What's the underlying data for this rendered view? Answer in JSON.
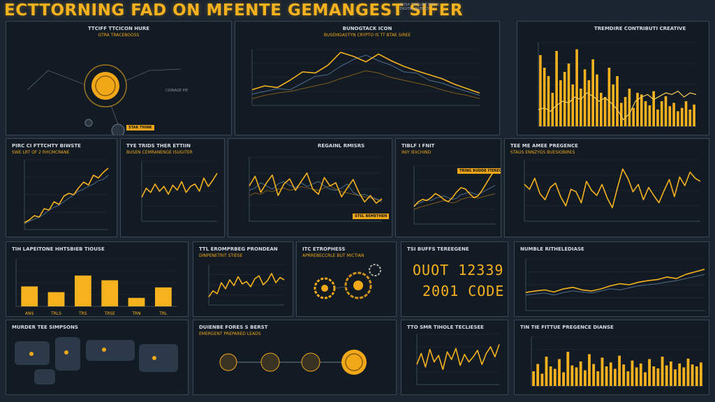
{
  "header": {
    "title": "ECTTORNING FAD ON MFENTE GEMANGEST SIFER",
    "subtitle": "RUSA TIMELINE BULLS DIGITAL AGENCY"
  },
  "colors": {
    "accent": "#f6b21e",
    "line_blue": "#4f6c8c",
    "grid": "#26323e",
    "panel": "#121b24"
  },
  "panels": {
    "p1": {
      "title": "TTCIFF TTCICON HURE",
      "sub": "GTRA TRACEBOOSS",
      "badge": "STAK THINK",
      "note": "COINAGE PIE"
    },
    "p2": {
      "title": "BUNOGTACK ICON",
      "sub": "BUSEMGASTYN CRYPTO IS TT BTAE SIREE"
    },
    "p3": {
      "title": "TREMDIRE CONTRIBUTI CREATIVE"
    },
    "p4": {
      "title": "PIRC CI FTTCHTY BIWSTE",
      "sub": "SWE LRT OF 2 RHCMCRANE"
    },
    "p5": {
      "title": "TYE TRIDS THER ETTIIN",
      "sub": "BUSEN CEMRANENGE ISUGITER"
    },
    "p6": {
      "title": "REGAINL RMISRS",
      "badge": "STSL BEMETHEN"
    },
    "p7": {
      "title": "TIBLF I FNIT",
      "sub": "INIY IEIICHIND",
      "badge": "TRING BUDDE ITEREC TOLDES"
    },
    "p8": {
      "title": "TEE ME AMEE PREGENCE",
      "sub": "STAUS ENNZYGS BUESIOBIRES"
    },
    "p9": {
      "title": "TIH LAPEITONE HHTSBIEB TIOUSE"
    },
    "p10": {
      "title": "TTL EROMPRBEG PRONDEAN",
      "sub": "DINPENETRIT STIESE"
    },
    "p11": {
      "title": "ITC ETROPHESS",
      "sub": "APRREBECCRLE BUT MICTIAN"
    },
    "p12": {
      "title": "TSI BUFFS TEREEGENE",
      "num1": "OUOT 12339",
      "num2": "2001 CODE"
    },
    "p13": {
      "title": "NUMBLE RITHELEDIASE"
    },
    "p14": {
      "title": "MURDER TEE SIMPSONS"
    },
    "p15": {
      "title": "DUIENBE FORES S BERST",
      "sub": "EMERGENT PREPARED LEADS"
    },
    "p16": {
      "title": "TTO SMR TIHOLE TECLIESEE"
    },
    "p17": {
      "title": "TIN TIE FITTUE PREGENCE DIANSE"
    }
  },
  "chart_data": [
    {
      "type": "line",
      "panel": "p2",
      "series": [
        {
          "values": [
            28,
            35,
            32,
            45,
            60,
            58,
            72,
            95,
            88,
            78,
            92,
            80,
            70,
            62,
            55,
            48,
            38,
            30,
            22
          ]
        },
        {
          "values": [
            20,
            25,
            30,
            28,
            40,
            52,
            55,
            70,
            82,
            90,
            80,
            72,
            60,
            58,
            45,
            40,
            32,
            25,
            18
          ]
        },
        {
          "values": [
            12,
            18,
            22,
            25,
            30,
            35,
            40,
            48,
            55,
            62,
            58,
            50,
            45,
            40,
            35,
            28,
            22,
            18,
            12
          ]
        }
      ],
      "ylim": [
        0,
        100
      ]
    },
    {
      "type": "bar",
      "panel": "p3",
      "values": [
        85,
        70,
        60,
        40,
        90,
        55,
        65,
        75,
        50,
        92,
        45,
        68,
        55,
        80,
        62,
        40,
        35,
        70,
        50,
        60,
        28,
        35,
        45,
        22,
        40,
        38,
        30,
        25,
        42,
        20,
        30,
        36,
        24,
        28,
        18,
        22,
        30,
        20,
        26
      ],
      "ylim": [
        0,
        100
      ],
      "overlay": [
        20,
        22,
        18,
        25,
        30,
        28,
        35,
        32,
        40,
        36,
        30,
        34,
        28,
        20,
        8,
        15,
        30,
        35,
        38,
        32,
        36,
        40,
        38,
        42,
        35,
        40,
        38
      ]
    },
    {
      "type": "line",
      "panel": "p4",
      "series": [
        {
          "values": [
            10,
            14,
            20,
            18,
            30,
            28,
            40,
            36,
            48,
            52,
            50,
            60,
            68,
            64,
            78,
            74,
            82,
            88
          ]
        },
        {
          "values": [
            8,
            12,
            15,
            18,
            22,
            28,
            32,
            35,
            40,
            45,
            50,
            55,
            58,
            62,
            65,
            70,
            72,
            78
          ]
        }
      ],
      "ylim": [
        0,
        100
      ]
    },
    {
      "type": "line",
      "panel": "p5",
      "series": [
        {
          "values": [
            40,
            55,
            48,
            62,
            50,
            58,
            45,
            60,
            52,
            66,
            48,
            58,
            62,
            50,
            72,
            58,
            68,
            80
          ]
        }
      ],
      "ylim": [
        0,
        100
      ]
    },
    {
      "type": "line",
      "panel": "p6",
      "series": [
        {
          "values": [
            55,
            70,
            45,
            60,
            72,
            40,
            58,
            66,
            48,
            62,
            75,
            50,
            42,
            68,
            55,
            60,
            38,
            52,
            65,
            45,
            30,
            40,
            28,
            35
          ]
        },
        {
          "values": [
            48,
            52,
            60,
            55,
            50,
            58,
            62,
            56,
            52,
            60,
            54,
            58,
            62,
            55,
            50,
            48,
            52,
            58,
            45,
            40,
            42,
            38,
            35,
            32
          ]
        },
        {
          "values": [
            40,
            44,
            42,
            48,
            46,
            50,
            52,
            48,
            50,
            54,
            52,
            50,
            48,
            52,
            55,
            50,
            46,
            44,
            42,
            40,
            38,
            36,
            34,
            30
          ]
        }
      ],
      "ylim": [
        0,
        100
      ]
    },
    {
      "type": "line",
      "panel": "p7",
      "series": [
        {
          "values": [
            30,
            38,
            42,
            40,
            45,
            52,
            48,
            42,
            38,
            45,
            55,
            62,
            60,
            52,
            45,
            48,
            58,
            70,
            82,
            92
          ]
        },
        {
          "values": [
            32,
            35,
            38,
            42,
            40,
            44,
            46,
            48,
            45,
            42,
            44,
            50,
            52,
            55,
            52,
            50,
            54,
            58,
            62,
            66
          ]
        },
        {
          "values": [
            25,
            28,
            30,
            32,
            34,
            36,
            38,
            40,
            38,
            36,
            38,
            42,
            44,
            46,
            45,
            44,
            46,
            48,
            50,
            52
          ]
        }
      ],
      "ylim": [
        0,
        100
      ]
    },
    {
      "type": "line",
      "panel": "p8",
      "series": [
        {
          "values": [
            60,
            52,
            70,
            45,
            35,
            55,
            62,
            40,
            25,
            52,
            48,
            30,
            65,
            50,
            42,
            60,
            38,
            22,
            55,
            85,
            70,
            48,
            60,
            35,
            55,
            42,
            30,
            50,
            68,
            40,
            72,
            58,
            80,
            70,
            65
          ]
        }
      ],
      "ylim": [
        0,
        100
      ]
    },
    {
      "type": "bar",
      "panel": "p9",
      "categories": [
        "ANS",
        "TRLS",
        "TRS",
        "TRSE",
        "TRN",
        "TRL"
      ],
      "values": [
        42,
        30,
        65,
        55,
        18,
        40
      ],
      "ylim": [
        0,
        100
      ]
    },
    {
      "type": "line",
      "panel": "p10",
      "series": [
        {
          "values": [
            20,
            35,
            28,
            55,
            40,
            62,
            48,
            70,
            52,
            58,
            45,
            65,
            72,
            50,
            60,
            78,
            55,
            68,
            62
          ]
        }
      ],
      "ylim": [
        0,
        100
      ]
    },
    {
      "type": "line",
      "panel": "p13",
      "series": [
        {
          "values": [
            35,
            38,
            40,
            36,
            42,
            45,
            40,
            38,
            42,
            48,
            52,
            50,
            55,
            58,
            60,
            65,
            62,
            70,
            75,
            80
          ]
        },
        {
          "values": [
            30,
            32,
            34,
            30,
            35,
            38,
            36,
            34,
            38,
            42,
            40,
            44,
            48,
            50,
            52,
            55,
            58,
            62,
            66,
            70
          ]
        }
      ],
      "ylim": [
        0,
        100
      ]
    },
    {
      "type": "line",
      "panel": "p16",
      "series": [
        {
          "values": [
            40,
            62,
            35,
            70,
            45,
            58,
            30,
            65,
            50,
            72,
            38,
            60,
            45,
            55,
            68,
            40,
            62,
            75,
            55,
            80
          ]
        }
      ],
      "ylim": [
        0,
        100
      ]
    },
    {
      "type": "bar",
      "panel": "p17",
      "values": [
        30,
        45,
        25,
        60,
        40,
        35,
        55,
        28,
        70,
        42,
        38,
        50,
        32,
        65,
        45,
        30,
        58,
        40,
        48,
        35,
        62,
        44,
        30,
        52,
        38,
        46,
        28,
        55,
        40,
        36,
        60,
        42,
        50,
        34,
        46,
        38,
        56,
        44,
        40,
        48
      ],
      "ylim": [
        0,
        100
      ]
    }
  ]
}
